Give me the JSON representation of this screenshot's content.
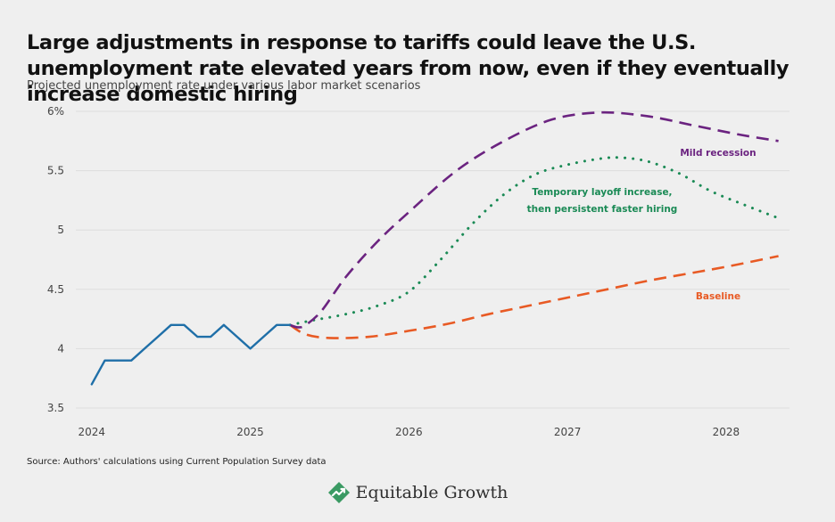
{
  "title": "Large adjustments in response to tariffs could leave the U.S. unemployment rate elevated years from now, even if they eventually increase domestic hiring",
  "subtitle": "Projected unemployment rate under various labor market scenarios",
  "source": "Source: Authors' calculations using Current Population Survey data",
  "brand": {
    "name": "Equitable Growth",
    "logo_icon": "growth-logo-icon"
  },
  "colors": {
    "historical": "#1f6fa8",
    "mild_recession": "#6b2380",
    "temporary_layoff": "#1a8a55",
    "baseline": "#e85a24",
    "grid": "#dddddd",
    "tick_text": "#444444"
  },
  "chart_data": {
    "type": "line",
    "title": "Large adjustments in response to tariffs could leave the U.S. unemployment rate elevated years from now, even if they eventually increase domestic hiring",
    "subtitle": "Projected unemployment rate under various labor market scenarios",
    "xlabel": "",
    "ylabel": "",
    "xlim": [
      2023.9,
      2028.4
    ],
    "ylim": [
      3.5,
      6
    ],
    "x_ticks": [
      2024,
      2025,
      2026,
      2027,
      2028
    ],
    "x_tick_labels": [
      "2024",
      "2025",
      "2026",
      "2027",
      "2028"
    ],
    "y_ticks": [
      3.5,
      4,
      4.5,
      5,
      5.5,
      6
    ],
    "y_tick_labels": [
      "3.5",
      "4",
      "4.5",
      "5",
      "5.5",
      "6%"
    ],
    "grid": true,
    "series": [
      {
        "key": "historical",
        "name": "",
        "style": "solid",
        "color": "#1f6fa8",
        "x": [
          2024.0,
          2024.083,
          2024.167,
          2024.25,
          2024.333,
          2024.417,
          2024.5,
          2024.583,
          2024.667,
          2024.75,
          2024.833,
          2024.917,
          2025.0,
          2025.083,
          2025.167,
          2025.25
        ],
        "y": [
          3.7,
          3.9,
          3.9,
          3.9,
          4.0,
          4.1,
          4.2,
          4.2,
          4.1,
          4.1,
          4.2,
          4.1,
          4.0,
          4.1,
          4.2,
          4.2
        ]
      },
      {
        "key": "mild_recession",
        "name": "Mild recession",
        "style": "dashed",
        "color": "#6b2380",
        "x": [
          2025.25,
          2025.3,
          2025.35,
          2025.45,
          2025.6,
          2025.8,
          2026.0,
          2026.3,
          2026.6,
          2026.9,
          2027.2,
          2027.5,
          2027.8,
          2028.1,
          2028.33
        ],
        "y": [
          4.2,
          4.18,
          4.2,
          4.32,
          4.6,
          4.9,
          5.15,
          5.5,
          5.75,
          5.93,
          5.99,
          5.96,
          5.88,
          5.8,
          5.75
        ]
      },
      {
        "key": "temporary_layoff",
        "name": "Temporary layoff increase, then persistent faster hiring",
        "style": "dotted",
        "color": "#1a8a55",
        "x": [
          2025.25,
          2025.4,
          2025.6,
          2025.8,
          2026.0,
          2026.2,
          2026.4,
          2026.6,
          2026.8,
          2027.0,
          2027.2,
          2027.33,
          2027.5,
          2027.7,
          2027.9,
          2028.1,
          2028.33
        ],
        "y": [
          4.2,
          4.24,
          4.29,
          4.36,
          4.48,
          4.75,
          5.05,
          5.3,
          5.47,
          5.55,
          5.6,
          5.61,
          5.58,
          5.48,
          5.33,
          5.22,
          5.1
        ]
      },
      {
        "key": "baseline",
        "name": "Baseline",
        "style": "dashed",
        "color": "#e85a24",
        "x": [
          2025.25,
          2025.35,
          2025.5,
          2025.75,
          2026.0,
          2026.25,
          2026.5,
          2026.75,
          2027.0,
          2027.25,
          2027.5,
          2027.75,
          2028.0,
          2028.33
        ],
        "y": [
          4.2,
          4.12,
          4.09,
          4.1,
          4.15,
          4.21,
          4.29,
          4.36,
          4.43,
          4.5,
          4.57,
          4.63,
          4.69,
          4.78
        ]
      }
    ],
    "annotations": [
      {
        "series": "mild_recession",
        "lines": [
          "Mild recession"
        ]
      },
      {
        "series": "temporary_layoff",
        "lines": [
          "Temporary layoff increase,",
          "then persistent faster hiring"
        ]
      },
      {
        "series": "baseline",
        "lines": [
          "Baseline"
        ]
      }
    ]
  }
}
